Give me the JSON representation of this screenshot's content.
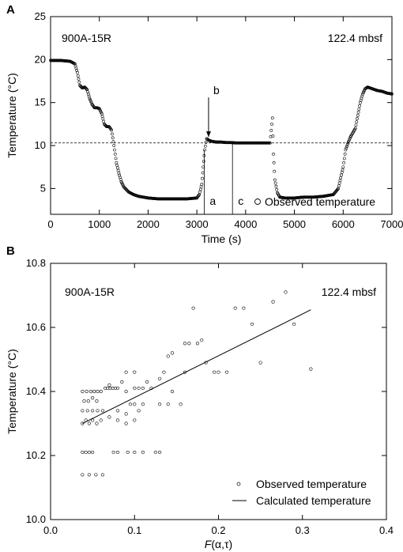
{
  "chart_data": [
    {
      "panel_label": "A",
      "type": "scatter",
      "xlabel": "Time (s)",
      "ylabel": "Temperature (°C)",
      "xlim": [
        0,
        7000
      ],
      "ylim": [
        2,
        25
      ],
      "xticks": [
        0,
        1000,
        2000,
        3000,
        4000,
        5000,
        6000,
        7000
      ],
      "yticks": [
        5,
        10,
        15,
        20,
        25
      ],
      "annotation_left": "900A-15R",
      "annotation_right": "122.4 mbsf",
      "legend": {
        "label": "Observed temperature",
        "position": "bottom-right"
      },
      "reference_line_y": 10.3,
      "markers": [
        {
          "label": "b",
          "x": 3240,
          "arrow_from": 15.6,
          "arrow_to": 11.0
        },
        {
          "label": "a",
          "x": 3150,
          "line_from": 2,
          "line_to": 9.5
        },
        {
          "label": "c",
          "x": 3730,
          "line_from": 2,
          "line_to": 10.2
        }
      ],
      "series": [
        {
          "values_x": [
            0,
            200,
            400,
            500,
            550,
            600,
            650,
            700,
            750,
            800,
            850,
            900,
            950,
            1000,
            1050,
            1100,
            1150,
            1200,
            1250,
            1300,
            1350,
            1400,
            1450,
            1500,
            1600,
            1700,
            1800,
            1900,
            2000,
            2200,
            2400,
            2600,
            2800,
            3000,
            3050,
            3100,
            3130,
            3160,
            3200,
            3250,
            3300,
            3400,
            3500,
            3600,
            3700,
            3800,
            3900,
            4000,
            4100,
            4200,
            4300,
            4400,
            4500,
            4550,
            4570,
            4600,
            4650,
            4700,
            4800,
            5000,
            5200,
            5400,
            5600,
            5800,
            5900,
            6000,
            6050,
            6100,
            6150,
            6200,
            6250,
            6300,
            6350,
            6400,
            6450,
            6500,
            6550,
            6600,
            6650,
            6700,
            6800,
            6900,
            7000
          ],
          "values_y": [
            19.9,
            19.9,
            19.8,
            19.5,
            18.5,
            17.0,
            16.7,
            16.8,
            16.5,
            15.5,
            14.8,
            14.4,
            14.4,
            14.3,
            13.7,
            12.5,
            12.2,
            12.2,
            11.8,
            10.0,
            8.0,
            6.8,
            5.8,
            5.2,
            4.6,
            4.3,
            4.1,
            4.0,
            3.9,
            3.8,
            3.8,
            3.8,
            3.8,
            3.9,
            4.3,
            5.5,
            7.5,
            9.5,
            10.8,
            10.6,
            10.5,
            10.4,
            10.4,
            10.35,
            10.35,
            10.3,
            10.3,
            10.3,
            10.3,
            10.3,
            10.3,
            10.3,
            10.3,
            13.2,
            9.0,
            6.0,
            4.5,
            4.0,
            3.9,
            3.9,
            4.0,
            4.0,
            4.1,
            4.3,
            5.0,
            7.5,
            9.5,
            10.3,
            11.0,
            11.5,
            12.0,
            13.5,
            15.0,
            16.0,
            16.6,
            16.8,
            16.7,
            16.6,
            16.5,
            16.4,
            16.3,
            16.1,
            16.0
          ]
        }
      ]
    },
    {
      "panel_label": "B",
      "type": "scatter",
      "xlabel": "F(α,τ)",
      "ylabel": "Temperature (°C)",
      "xlim": [
        0,
        0.4
      ],
      "ylim": [
        10.0,
        10.8
      ],
      "xticks": [
        "0.0",
        "0.1",
        "0.2",
        "0.3",
        "0.4"
      ],
      "yticks": [
        "10.0",
        "10.2",
        "10.4",
        "10.6",
        "10.8"
      ],
      "annotation_left": "900A-15R",
      "annotation_right": "122.4 mbsf",
      "legend": [
        {
          "label": "Observed temperature",
          "marker": "circle"
        },
        {
          "label": "Calculated temperature",
          "marker": "line"
        }
      ],
      "series": [
        {
          "name": "Observed temperature",
          "points": [
            [
              0.038,
              10.14
            ],
            [
              0.046,
              10.14
            ],
            [
              0.054,
              10.14
            ],
            [
              0.062,
              10.14
            ],
            [
              0.038,
              10.21
            ],
            [
              0.042,
              10.21
            ],
            [
              0.046,
              10.21
            ],
            [
              0.05,
              10.21
            ],
            [
              0.075,
              10.21
            ],
            [
              0.08,
              10.21
            ],
            [
              0.092,
              10.21
            ],
            [
              0.1,
              10.21
            ],
            [
              0.11,
              10.21
            ],
            [
              0.125,
              10.21
            ],
            [
              0.13,
              10.21
            ],
            [
              0.038,
              10.3
            ],
            [
              0.042,
              10.31
            ],
            [
              0.046,
              10.3
            ],
            [
              0.05,
              10.31
            ],
            [
              0.055,
              10.3
            ],
            [
              0.06,
              10.31
            ],
            [
              0.07,
              10.32
            ],
            [
              0.08,
              10.31
            ],
            [
              0.09,
              10.3
            ],
            [
              0.1,
              10.31
            ],
            [
              0.038,
              10.34
            ],
            [
              0.044,
              10.34
            ],
            [
              0.05,
              10.34
            ],
            [
              0.056,
              10.34
            ],
            [
              0.062,
              10.34
            ],
            [
              0.08,
              10.34
            ],
            [
              0.09,
              10.33
            ],
            [
              0.095,
              10.36
            ],
            [
              0.1,
              10.36
            ],
            [
              0.105,
              10.34
            ],
            [
              0.11,
              10.36
            ],
            [
              0.13,
              10.36
            ],
            [
              0.14,
              10.36
            ],
            [
              0.155,
              10.36
            ],
            [
              0.04,
              10.37
            ],
            [
              0.045,
              10.37
            ],
            [
              0.05,
              10.38
            ],
            [
              0.055,
              10.37
            ],
            [
              0.038,
              10.4
            ],
            [
              0.043,
              10.4
            ],
            [
              0.048,
              10.4
            ],
            [
              0.052,
              10.4
            ],
            [
              0.056,
              10.4
            ],
            [
              0.06,
              10.4
            ],
            [
              0.065,
              10.41
            ],
            [
              0.068,
              10.41
            ],
            [
              0.071,
              10.41
            ],
            [
              0.074,
              10.41
            ],
            [
              0.077,
              10.41
            ],
            [
              0.08,
              10.41
            ],
            [
              0.09,
              10.4
            ],
            [
              0.1,
              10.41
            ],
            [
              0.105,
              10.41
            ],
            [
              0.11,
              10.41
            ],
            [
              0.115,
              10.43
            ],
            [
              0.12,
              10.41
            ],
            [
              0.13,
              10.44
            ],
            [
              0.145,
              10.4
            ],
            [
              0.07,
              10.42
            ],
            [
              0.085,
              10.43
            ],
            [
              0.09,
              10.46
            ],
            [
              0.1,
              10.46
            ],
            [
              0.135,
              10.46
            ],
            [
              0.16,
              10.46
            ],
            [
              0.185,
              10.49
            ],
            [
              0.195,
              10.46
            ],
            [
              0.2,
              10.46
            ],
            [
              0.21,
              10.46
            ],
            [
              0.25,
              10.49
            ],
            [
              0.14,
              10.51
            ],
            [
              0.145,
              10.52
            ],
            [
              0.16,
              10.55
            ],
            [
              0.165,
              10.55
            ],
            [
              0.175,
              10.55
            ],
            [
              0.18,
              10.56
            ],
            [
              0.24,
              10.61
            ],
            [
              0.29,
              10.61
            ],
            [
              0.31,
              10.47
            ],
            [
              0.17,
              10.66
            ],
            [
              0.22,
              10.66
            ],
            [
              0.23,
              10.66
            ],
            [
              0.265,
              10.68
            ],
            [
              0.28,
              10.71
            ]
          ]
        },
        {
          "name": "Calculated temperature",
          "line": [
            [
              0.038,
              10.3
            ],
            [
              0.31,
              10.655
            ]
          ]
        }
      ]
    }
  ]
}
